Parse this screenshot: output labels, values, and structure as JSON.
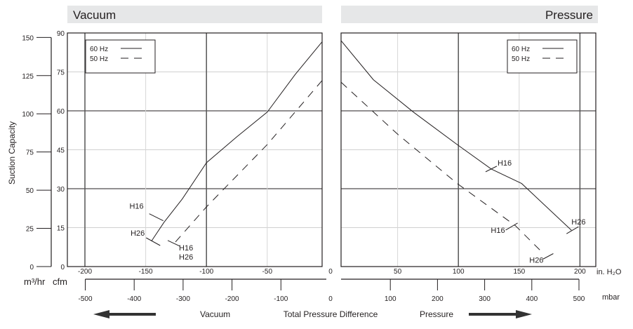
{
  "panels": {
    "left_title": "Vacuum",
    "right_title": "Pressure"
  },
  "axes": {
    "ylabel": "Suction Capacity",
    "y_unit_m3": "m³/hr",
    "y_unit_cfm": "cfm",
    "x_unit_inh2o": "in. H₂O",
    "x_unit_mbar": "mbar",
    "m3hr_ticks": [
      0,
      25,
      50,
      75,
      100,
      125,
      150
    ],
    "cfm_ticks": [
      0,
      15,
      30,
      45,
      60,
      75,
      90
    ],
    "zero_label": "0"
  },
  "bottom": {
    "vacuum": "Vacuum",
    "center": "Total Pressure Difference",
    "pressure": "Pressure",
    "colors": {
      "arrow": "#333333",
      "header": "#e6e7e8"
    }
  },
  "chart_data": [
    {
      "type": "line",
      "title": "Vacuum",
      "xlabel": "in. H2O",
      "ylabel": "Suction Capacity (cfm)",
      "xlim": [
        -200,
        0
      ],
      "ylim": [
        0,
        90
      ],
      "x_ticks": [
        -200,
        -150,
        -100,
        -50
      ],
      "x2_ticks_mbar": [
        -500,
        -400,
        -300,
        -200,
        -100
      ],
      "grid": true,
      "legend": "top-left",
      "series": [
        {
          "name": "60 Hz",
          "style": "solid",
          "x": [
            -145,
            -135,
            -120,
            -100,
            -75,
            -50,
            -27,
            -5
          ],
          "y": [
            10,
            17,
            26,
            40,
            50,
            59.5,
            74,
            86.5
          ]
        },
        {
          "name": "50 Hz",
          "style": "dashed",
          "x": [
            -125.5,
            -100,
            -50,
            -5
          ],
          "y": [
            9.5,
            23,
            47,
            71.6
          ]
        }
      ],
      "annotations": [
        {
          "text": "H16",
          "series": "60 Hz",
          "x": -139,
          "y": 19
        },
        {
          "text": "H26",
          "series": "60 Hz",
          "x": -145,
          "y": 10
        },
        {
          "text": "H16",
          "series": "50 Hz",
          "x": -125.5,
          "y": 9.5
        },
        {
          "text": "H26",
          "series": "50 Hz",
          "x": -125.5,
          "y": 9.5
        }
      ]
    },
    {
      "type": "line",
      "title": "Pressure",
      "xlabel": "in. H2O",
      "ylabel": "Suction Capacity (cfm)",
      "xlim": [
        0,
        200
      ],
      "ylim": [
        0,
        90
      ],
      "x_ticks": [
        50,
        100,
        150,
        200
      ],
      "x2_ticks_mbar": [
        100,
        200,
        300,
        400,
        500
      ],
      "grid": true,
      "legend": "top-right",
      "series": [
        {
          "name": "60 Hz",
          "style": "solid",
          "x": [
            3.5,
            30,
            63,
            99,
            127,
            152,
            193
          ],
          "y": [
            87,
            72,
            59.5,
            47,
            37.6,
            32,
            14
          ]
        },
        {
          "name": "50 Hz",
          "style": "dashed",
          "x": [
            3.5,
            50,
            99,
            147,
            170
          ],
          "y": [
            71,
            51,
            32,
            15.7,
            5
          ]
        }
      ],
      "annotations": [
        {
          "text": "H16",
          "series": "60 Hz",
          "x": 127,
          "y": 37.6
        },
        {
          "text": "H26",
          "series": "60 Hz",
          "x": 193,
          "y": 14
        },
        {
          "text": "H16",
          "series": "50 Hz",
          "x": 147,
          "y": 15.7
        },
        {
          "text": "H26",
          "series": "50 Hz",
          "x": 170,
          "y": 5
        }
      ]
    }
  ]
}
